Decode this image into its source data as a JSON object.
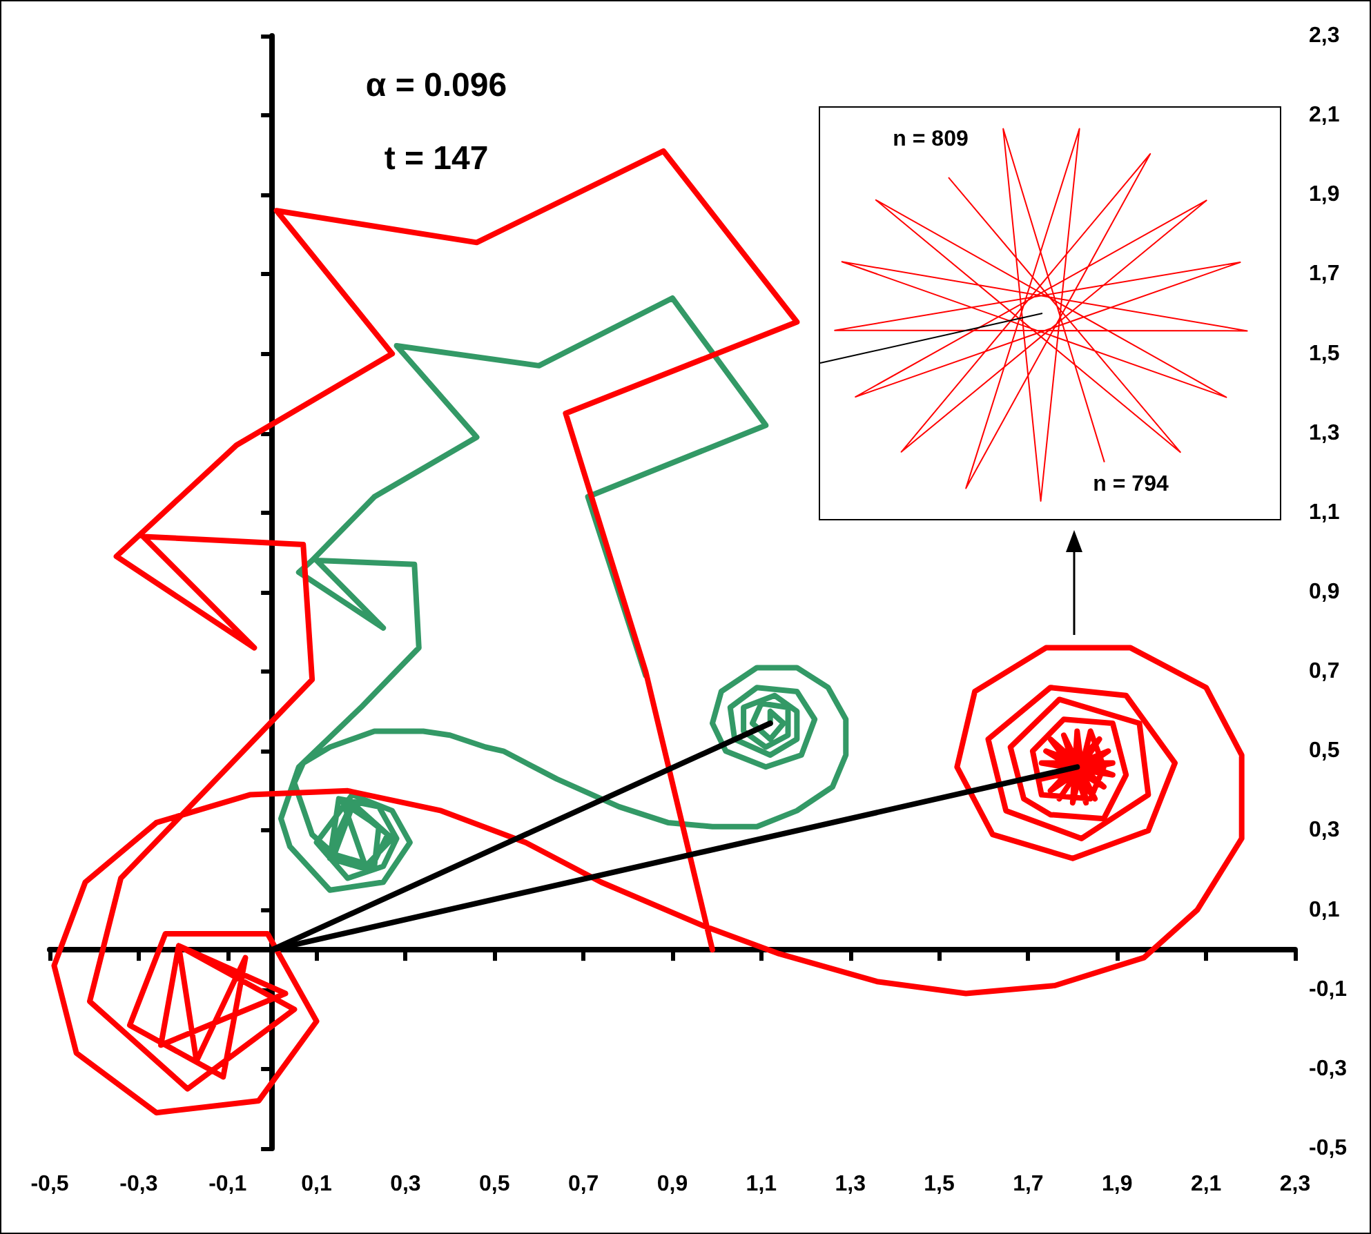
{
  "chart_data": {
    "type": "line",
    "xlim": [
      -0.5,
      2.3
    ],
    "ylim": [
      -0.5,
      2.3
    ],
    "xticks": [
      {
        "value": -0.5,
        "label": "-0,5"
      },
      {
        "value": -0.3,
        "label": "-0,3"
      },
      {
        "value": -0.1,
        "label": "-0,1"
      },
      {
        "value": 0.1,
        "label": "0,1"
      },
      {
        "value": 0.3,
        "label": "0,3"
      },
      {
        "value": 0.5,
        "label": "0,5"
      },
      {
        "value": 0.7,
        "label": "0,7"
      },
      {
        "value": 0.9,
        "label": "0,9"
      },
      {
        "value": 1.1,
        "label": "1,1"
      },
      {
        "value": 1.3,
        "label": "1,3"
      },
      {
        "value": 1.5,
        "label": "1,5"
      },
      {
        "value": 1.7,
        "label": "1,7"
      },
      {
        "value": 1.9,
        "label": "1,9"
      },
      {
        "value": 2.1,
        "label": "2,1"
      },
      {
        "value": 2.3,
        "label": "2,3"
      }
    ],
    "yticks": [
      {
        "value": -0.5,
        "label": "-0,5"
      },
      {
        "value": -0.3,
        "label": "-0,3"
      },
      {
        "value": -0.1,
        "label": "-0,1"
      },
      {
        "value": 0.1,
        "label": "0,1"
      },
      {
        "value": 0.3,
        "label": "0,3"
      },
      {
        "value": 0.5,
        "label": "0,5"
      },
      {
        "value": 0.7,
        "label": "0,7"
      },
      {
        "value": 0.9,
        "label": "0,9"
      },
      {
        "value": 1.1,
        "label": "1,1"
      },
      {
        "value": 1.3,
        "label": "1,3"
      },
      {
        "value": 1.5,
        "label": "1,5"
      },
      {
        "value": 1.7,
        "label": "1,7"
      },
      {
        "value": 1.9,
        "label": "1,9"
      },
      {
        "value": 2.1,
        "label": "2,1"
      },
      {
        "value": 2.3,
        "label": "2,3"
      }
    ],
    "annotations": [
      "α = 0.096",
      "t = 147",
      "n = 809",
      "n = 794"
    ],
    "series": [
      {
        "color": "#339966",
        "x": [
          0.84,
          0.71,
          1.11,
          0.9,
          0.6,
          0.28,
          0.46,
          0.23,
          0.09,
          0.06,
          0.25,
          0.1,
          0.32,
          0.33,
          0.2,
          0.06,
          0.02,
          0.04,
          0.13,
          0.25,
          0.31,
          0.27,
          0.18,
          0.1,
          0.17,
          0.25,
          0.28,
          0.24,
          0.15,
          0.13,
          0.22,
          0.26,
          0.18,
          0.14,
          0.23,
          0.24,
          0.16,
          0.21,
          0.27,
          0.18,
          0.13,
          0.09,
          0.05,
          0.07,
          0.13,
          0.23,
          0.34,
          0.4,
          0.48,
          0.52,
          0.64,
          0.78,
          0.89,
          0.99,
          1.09,
          1.18,
          1.26,
          1.29,
          1.29,
          1.25,
          1.18,
          1.09,
          1.01,
          0.99,
          1.02,
          1.11,
          1.19,
          1.22,
          1.18,
          1.09,
          1.03,
          1.04,
          1.12,
          1.18,
          1.18,
          1.13,
          1.06,
          1.06,
          1.11,
          1.16,
          1.16,
          1.1,
          1.08,
          1.12,
          1.15,
          1.12,
          1.12
        ],
        "values": [
          0.69,
          1.14,
          1.32,
          1.64,
          1.47,
          1.52,
          1.29,
          1.14,
          0.98,
          0.95,
          0.81,
          0.98,
          0.97,
          0.76,
          0.61,
          0.46,
          0.33,
          0.26,
          0.15,
          0.17,
          0.27,
          0.35,
          0.39,
          0.27,
          0.18,
          0.21,
          0.28,
          0.36,
          0.38,
          0.23,
          0.2,
          0.29,
          0.36,
          0.24,
          0.21,
          0.31,
          0.37,
          0.21,
          0.28,
          0.37,
          0.25,
          0.29,
          0.42,
          0.47,
          0.51,
          0.55,
          0.55,
          0.54,
          0.51,
          0.5,
          0.43,
          0.36,
          0.32,
          0.31,
          0.31,
          0.35,
          0.41,
          0.49,
          0.58,
          0.66,
          0.71,
          0.71,
          0.65,
          0.57,
          0.5,
          0.46,
          0.49,
          0.58,
          0.65,
          0.66,
          0.61,
          0.53,
          0.49,
          0.53,
          0.6,
          0.64,
          0.61,
          0.55,
          0.51,
          0.54,
          0.61,
          0.62,
          0.57,
          0.53,
          0.57,
          0.6,
          0.57
        ]
      },
      {
        "color": "#ff0000",
        "x": [
          0.99,
          0.84,
          0.66,
          1.18,
          0.88,
          0.46,
          0.01,
          0.27,
          -0.08,
          -0.35,
          -0.04,
          -0.29,
          0.07,
          0.09,
          -0.34,
          -0.41,
          -0.19,
          0.05,
          -0.21,
          -0.25,
          0.03,
          -0.21,
          -0.17,
          -0.06,
          -0.11,
          -0.32,
          -0.24,
          -0.01,
          0.1,
          -0.03,
          -0.26,
          -0.44,
          -0.49,
          -0.42,
          -0.26,
          -0.05,
          0.17,
          0.38,
          0.57,
          0.74,
          0.97,
          1.14,
          1.36,
          1.56,
          1.76,
          1.96,
          2.08,
          2.18,
          2.18,
          2.1,
          1.93,
          1.74,
          1.58,
          1.54,
          1.62,
          1.8,
          1.97,
          2.03,
          1.92,
          1.75,
          1.61,
          1.65,
          1.82,
          1.97,
          1.95,
          1.77,
          1.66,
          1.69,
          1.75,
          1.87,
          1.92,
          1.89,
          1.78,
          1.71,
          1.73,
          1.84,
          1.87,
          1.84,
          1.8,
          1.81,
          1.83,
          1.78,
          1.85,
          1.75,
          1.87,
          1.74,
          1.89,
          1.73,
          1.89,
          1.73,
          1.88,
          1.75,
          1.86,
          1.77
        ],
        "values": [
          0,
          0.7,
          1.35,
          1.58,
          2.01,
          1.78,
          1.86,
          1.5,
          1.27,
          0.99,
          0.76,
          1.04,
          1.02,
          0.68,
          0.18,
          -0.13,
          -0.35,
          -0.15,
          0.01,
          -0.24,
          -0.11,
          0.01,
          -0.28,
          -0.02,
          -0.32,
          -0.19,
          0.04,
          0.04,
          -0.18,
          -0.38,
          -0.41,
          -0.26,
          -0.04,
          0.17,
          0.32,
          0.39,
          0.4,
          0.35,
          0.27,
          0.17,
          0.06,
          -0.01,
          -0.08,
          -0.11,
          -0.09,
          -0.02,
          0.1,
          0.28,
          0.49,
          0.66,
          0.76,
          0.76,
          0.65,
          0.46,
          0.29,
          0.23,
          0.3,
          0.47,
          0.64,
          0.66,
          0.53,
          0.35,
          0.28,
          0.39,
          0.57,
          0.63,
          0.51,
          0.38,
          0.34,
          0.33,
          0.44,
          0.57,
          0.58,
          0.5,
          0.39,
          0.38,
          0.46,
          0.55,
          0.37,
          0.55,
          0.37,
          0.54,
          0.38,
          0.53,
          0.41,
          0.5,
          0.44,
          0.47,
          0.47,
          0.43,
          0.5,
          0.4,
          0.53,
          0.38
        ]
      },
      {
        "color": "#000000",
        "x": [
          0,
          1.12
        ],
        "values": [
          0,
          0.57
        ]
      },
      {
        "color": "#000000",
        "x": [
          0,
          1.81
        ],
        "values": [
          0,
          0.46
        ]
      }
    ]
  }
}
